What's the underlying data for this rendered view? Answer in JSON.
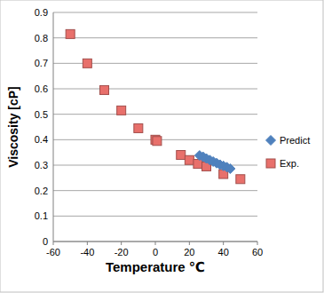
{
  "chart_data": {
    "type": "scatter",
    "x_label": "Temperature ℃",
    "y_label": "Viscosity [cP]",
    "xlim": [
      -60,
      60
    ],
    "xticks": [
      -60,
      -40,
      -20,
      0,
      20,
      40,
      60
    ],
    "ylim": [
      0,
      0.9
    ],
    "yticks": [
      0,
      0.1,
      0.2,
      0.3,
      0.4,
      0.5,
      0.6,
      0.7,
      0.8,
      0.9
    ],
    "grid": true,
    "legend": "right",
    "series": [
      {
        "name": "Predict",
        "color": "#4f81bd",
        "marker": "diamond",
        "x": [
          26,
          28,
          30,
          32,
          34,
          36,
          38,
          40,
          42,
          44
        ],
        "values": [
          0.338,
          0.333,
          0.326,
          0.32,
          0.314,
          0.308,
          0.302,
          0.297,
          0.292,
          0.286
        ]
      },
      {
        "name": "Exp.",
        "color": "#e8706b",
        "marker": "square",
        "x": [
          -50,
          -40,
          -30,
          -20,
          -10,
          0,
          1,
          15,
          20,
          25,
          30,
          40,
          50
        ],
        "values": [
          0.815,
          0.7,
          0.595,
          0.515,
          0.445,
          0.4,
          0.395,
          0.34,
          0.32,
          0.305,
          0.295,
          0.265,
          0.245
        ]
      }
    ]
  }
}
